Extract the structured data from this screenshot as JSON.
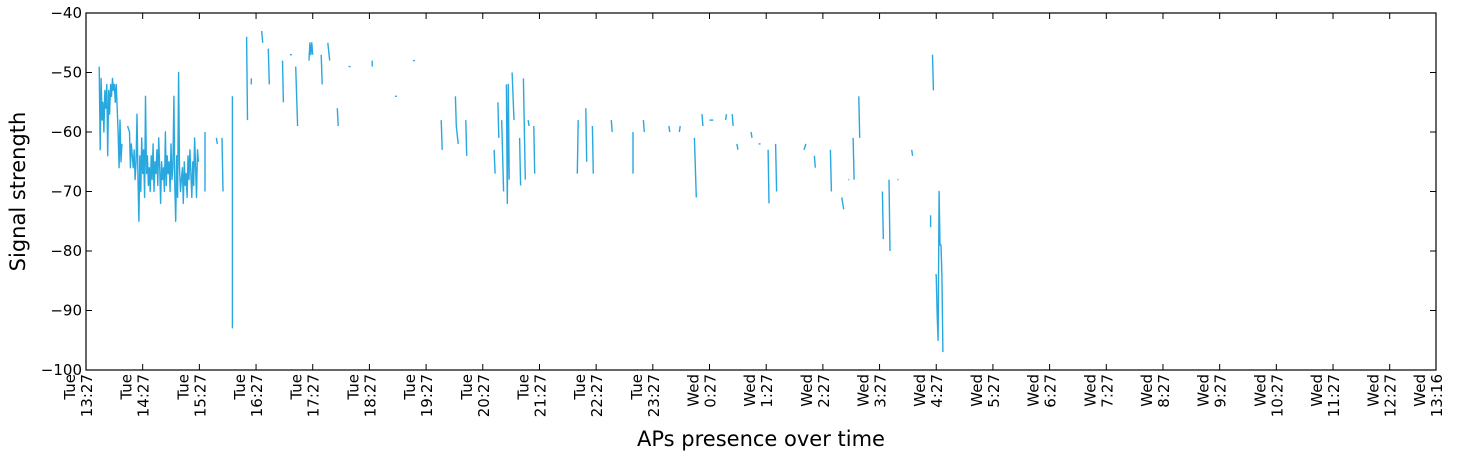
{
  "chart_data": {
    "type": "line",
    "xlabel": "APs presence over time",
    "ylabel": "Signal strength",
    "ylim": [
      -100,
      -40
    ],
    "yticks": [
      -100,
      -90,
      -80,
      -70,
      -60,
      -50,
      -40
    ],
    "x_unit": "minutes",
    "xlim": [
      0,
      1429
    ],
    "xticks": [
      {
        "pos": 0,
        "label": [
          "Tue",
          "13:27"
        ]
      },
      {
        "pos": 60,
        "label": [
          "Tue",
          "14:27"
        ]
      },
      {
        "pos": 120,
        "label": [
          "Tue",
          "15:27"
        ]
      },
      {
        "pos": 180,
        "label": [
          "Tue",
          "16:27"
        ]
      },
      {
        "pos": 240,
        "label": [
          "Tue",
          "17:27"
        ]
      },
      {
        "pos": 300,
        "label": [
          "Tue",
          "18:27"
        ]
      },
      {
        "pos": 360,
        "label": [
          "Tue",
          "19:27"
        ]
      },
      {
        "pos": 420,
        "label": [
          "Tue",
          "20:27"
        ]
      },
      {
        "pos": 480,
        "label": [
          "Tue",
          "21:27"
        ]
      },
      {
        "pos": 540,
        "label": [
          "Tue",
          "22:27"
        ]
      },
      {
        "pos": 600,
        "label": [
          "Tue",
          "23:27"
        ]
      },
      {
        "pos": 660,
        "label": [
          "Wed",
          "0:27"
        ]
      },
      {
        "pos": 720,
        "label": [
          "Wed",
          "1:27"
        ]
      },
      {
        "pos": 780,
        "label": [
          "Wed",
          "2:27"
        ]
      },
      {
        "pos": 840,
        "label": [
          "Wed",
          "3:27"
        ]
      },
      {
        "pos": 900,
        "label": [
          "Wed",
          "4:27"
        ]
      },
      {
        "pos": 960,
        "label": [
          "Wed",
          "5:27"
        ]
      },
      {
        "pos": 1020,
        "label": [
          "Wed",
          "6:27"
        ]
      },
      {
        "pos": 1080,
        "label": [
          "Wed",
          "7:27"
        ]
      },
      {
        "pos": 1140,
        "label": [
          "Wed",
          "8:27"
        ]
      },
      {
        "pos": 1200,
        "label": [
          "Wed",
          "9:27"
        ]
      },
      {
        "pos": 1260,
        "label": [
          "Wed",
          "10:27"
        ]
      },
      {
        "pos": 1320,
        "label": [
          "Wed",
          "11:27"
        ]
      },
      {
        "pos": 1380,
        "label": [
          "Wed",
          "12:27"
        ]
      },
      {
        "pos": 1429,
        "label": [
          "Wed",
          "13:16"
        ]
      }
    ],
    "color": "#29a8e0",
    "grid": false,
    "segments": [
      [
        [
          14,
          -49
        ],
        [
          15,
          -63
        ],
        [
          16,
          -51
        ],
        [
          17,
          -58
        ],
        [
          18,
          -55
        ],
        [
          19,
          -60
        ],
        [
          20,
          -53
        ],
        [
          21,
          -56
        ],
        [
          22,
          -52
        ],
        [
          23,
          -64
        ],
        [
          24,
          -53
        ],
        [
          25,
          -57
        ],
        [
          26,
          -52
        ],
        [
          27,
          -54
        ],
        [
          28,
          -51
        ],
        [
          29,
          -53
        ],
        [
          30,
          -52
        ],
        [
          31,
          -55
        ],
        [
          32,
          -52
        ],
        [
          33,
          -56
        ],
        [
          34,
          -60
        ],
        [
          35,
          -66
        ],
        [
          36,
          -58
        ],
        [
          37,
          -65
        ],
        [
          38,
          -62
        ]
      ],
      [
        [
          44,
          -59
        ],
        [
          46,
          -60
        ],
        [
          47,
          -66
        ],
        [
          48,
          -62
        ],
        [
          49,
          -64
        ],
        [
          50,
          -66
        ],
        [
          51,
          -63
        ],
        [
          52,
          -68
        ],
        [
          53,
          -65
        ],
        [
          54,
          -57
        ],
        [
          55,
          -68
        ],
        [
          56,
          -75
        ],
        [
          57,
          -64
        ],
        [
          58,
          -70
        ],
        [
          59,
          -61
        ],
        [
          60,
          -67
        ],
        [
          61,
          -63
        ],
        [
          62,
          -71
        ],
        [
          63,
          -54
        ],
        [
          64,
          -67
        ],
        [
          65,
          -64
        ],
        [
          66,
          -69
        ],
        [
          67,
          -66
        ],
        [
          68,
          -70
        ],
        [
          69,
          -64
        ],
        [
          70,
          -68
        ],
        [
          71,
          -62
        ],
        [
          72,
          -70
        ],
        [
          73,
          -65
        ],
        [
          74,
          -67
        ],
        [
          75,
          -63
        ],
        [
          76,
          -69
        ],
        [
          77,
          -61
        ],
        [
          78,
          -66
        ],
        [
          79,
          -72
        ],
        [
          80,
          -65
        ],
        [
          81,
          -68
        ],
        [
          82,
          -66
        ],
        [
          83,
          -70
        ],
        [
          84,
          -60
        ],
        [
          85,
          -69
        ],
        [
          86,
          -64
        ],
        [
          87,
          -67
        ],
        [
          88,
          -65
        ],
        [
          89,
          -70
        ],
        [
          90,
          -62
        ],
        [
          91,
          -68
        ],
        [
          92,
          -66
        ],
        [
          93,
          -54
        ],
        [
          94,
          -69
        ],
        [
          95,
          -75
        ],
        [
          96,
          -64
        ],
        [
          97,
          -71
        ],
        [
          98,
          -50
        ],
        [
          99,
          -66
        ],
        [
          100,
          -70
        ],
        [
          101,
          -68
        ],
        [
          102,
          -66
        ],
        [
          103,
          -72
        ],
        [
          104,
          -65
        ],
        [
          105,
          -69
        ],
        [
          106,
          -67
        ],
        [
          107,
          -71
        ],
        [
          108,
          -64
        ],
        [
          109,
          -68
        ],
        [
          110,
          -63
        ],
        [
          111,
          -67
        ],
        [
          112,
          -71
        ],
        [
          113,
          -65
        ],
        [
          114,
          -69
        ],
        [
          115,
          -61
        ],
        [
          116,
          -66
        ],
        [
          117,
          -71
        ],
        [
          118,
          -63
        ],
        [
          119,
          -65
        ]
      ],
      [
        [
          126,
          -70
        ],
        [
          126,
          -60
        ]
      ],
      [
        [
          138,
          -61
        ],
        [
          139,
          -62
        ]
      ],
      [
        [
          144,
          -61
        ],
        [
          145,
          -70
        ]
      ],
      [
        [
          155,
          -54
        ],
        [
          155,
          -93
        ]
      ],
      [
        [
          170,
          -44
        ],
        [
          171,
          -58
        ]
      ],
      [
        [
          175,
          -51
        ],
        [
          175,
          -52
        ]
      ],
      [
        [
          186,
          -43
        ],
        [
          187,
          -45
        ]
      ],
      [
        [
          193,
          -46
        ],
        [
          194,
          -52
        ]
      ],
      [
        [
          208,
          -48
        ],
        [
          209,
          -55
        ]
      ],
      [
        [
          216,
          -47
        ],
        [
          218,
          -47
        ]
      ],
      [
        [
          222,
          -49
        ],
        [
          224,
          -59
        ]
      ],
      [
        [
          236,
          -48
        ],
        [
          237,
          -45
        ],
        [
          238,
          -47
        ],
        [
          239,
          -45
        ],
        [
          240,
          -47
        ]
      ],
      [
        [
          249,
          -47
        ],
        [
          250,
          -52
        ]
      ],
      [
        [
          256,
          -45
        ],
        [
          258,
          -48
        ]
      ],
      [
        [
          266,
          -56
        ],
        [
          267,
          -59
        ]
      ],
      [
        [
          278,
          -49
        ],
        [
          280,
          -49
        ]
      ],
      [
        [
          303,
          -48
        ],
        [
          303,
          -49
        ]
      ],
      [
        [
          327,
          -54
        ],
        [
          329,
          -54
        ]
      ],
      [
        [
          346,
          -48
        ],
        [
          348,
          -48
        ]
      ],
      [
        [
          376,
          -58
        ],
        [
          377,
          -63
        ]
      ],
      [
        [
          391,
          -54
        ],
        [
          392,
          -59
        ],
        [
          394,
          -62
        ]
      ],
      [
        [
          402,
          -58
        ],
        [
          403,
          -64
        ]
      ],
      [
        [
          432,
          -63
        ],
        [
          433,
          -67
        ]
      ],
      [
        [
          436,
          -55
        ],
        [
          437,
          -61
        ]
      ],
      [
        [
          440,
          -58
        ],
        [
          442,
          -70
        ]
      ],
      [
        [
          445,
          -52
        ],
        [
          446,
          -72
        ],
        [
          447,
          -52
        ],
        [
          448,
          -68
        ]
      ],
      [
        [
          451,
          -50
        ],
        [
          453,
          -58
        ]
      ],
      [
        [
          459,
          -61
        ],
        [
          460,
          -69
        ]
      ],
      [
        [
          463,
          -51
        ],
        [
          465,
          -68
        ]
      ],
      [
        [
          468,
          -58
        ],
        [
          469,
          -59
        ]
      ],
      [
        [
          474,
          -59
        ],
        [
          475,
          -67
        ]
      ],
      [
        [
          520,
          -67
        ],
        [
          521,
          -58
        ]
      ],
      [
        [
          529,
          -56
        ],
        [
          530,
          -65
        ]
      ],
      [
        [
          536,
          -59
        ],
        [
          537,
          -67
        ]
      ],
      [
        [
          556,
          -58
        ],
        [
          557,
          -60
        ]
      ],
      [
        [
          579,
          -60
        ],
        [
          579,
          -67
        ]
      ],
      [
        [
          590,
          -58
        ],
        [
          591,
          -60
        ]
      ],
      [
        [
          617,
          -59
        ],
        [
          618,
          -60
        ]
      ],
      [
        [
          628,
          -60
        ],
        [
          629,
          -59
        ]
      ],
      [
        [
          644,
          -61
        ],
        [
          646,
          -71
        ]
      ],
      [
        [
          652,
          -57
        ],
        [
          653,
          -59
        ]
      ],
      [
        [
          660,
          -58
        ],
        [
          664,
          -58
        ]
      ],
      [
        [
          677,
          -58
        ],
        [
          678,
          -57
        ]
      ],
      [
        [
          684,
          -57
        ],
        [
          685,
          -59
        ]
      ],
      [
        [
          689,
          -62
        ],
        [
          690,
          -63
        ]
      ],
      [
        [
          704,
          -60
        ],
        [
          705,
          -61
        ]
      ],
      [
        [
          712,
          -62
        ],
        [
          714,
          -62
        ]
      ],
      [
        [
          722,
          -63
        ],
        [
          723,
          -72
        ]
      ],
      [
        [
          730,
          -62
        ],
        [
          731,
          -70
        ]
      ],
      [
        [
          760,
          -63
        ],
        [
          762,
          -62
        ]
      ],
      [
        [
          771,
          -64
        ],
        [
          772,
          -66
        ]
      ],
      [
        [
          788,
          -63
        ],
        [
          789,
          -70
        ]
      ],
      [
        [
          800,
          -71
        ],
        [
          802,
          -73
        ]
      ],
      [
        [
          807,
          -68
        ],
        [
          808,
          -68
        ]
      ],
      [
        [
          812,
          -61
        ],
        [
          813,
          -68
        ]
      ],
      [
        [
          818,
          -54
        ],
        [
          819,
          -61
        ]
      ],
      [
        [
          843,
          -70
        ],
        [
          844,
          -78
        ]
      ],
      [
        [
          850,
          -68
        ],
        [
          851,
          -80
        ]
      ],
      [
        [
          859,
          -68
        ],
        [
          860,
          -68
        ]
      ],
      [
        [
          874,
          -63
        ],
        [
          875,
          -64
        ]
      ],
      [
        [
          894,
          -74
        ],
        [
          894,
          -76
        ]
      ],
      [
        [
          896,
          -47
        ],
        [
          897,
          -53
        ]
      ],
      [
        [
          899,
          -84
        ],
        [
          900,
          -84
        ],
        [
          901,
          -91
        ],
        [
          902,
          -95
        ],
        [
          903,
          -70
        ],
        [
          904,
          -79
        ],
        [
          905,
          -79
        ],
        [
          906,
          -84
        ],
        [
          907,
          -97
        ]
      ]
    ]
  }
}
